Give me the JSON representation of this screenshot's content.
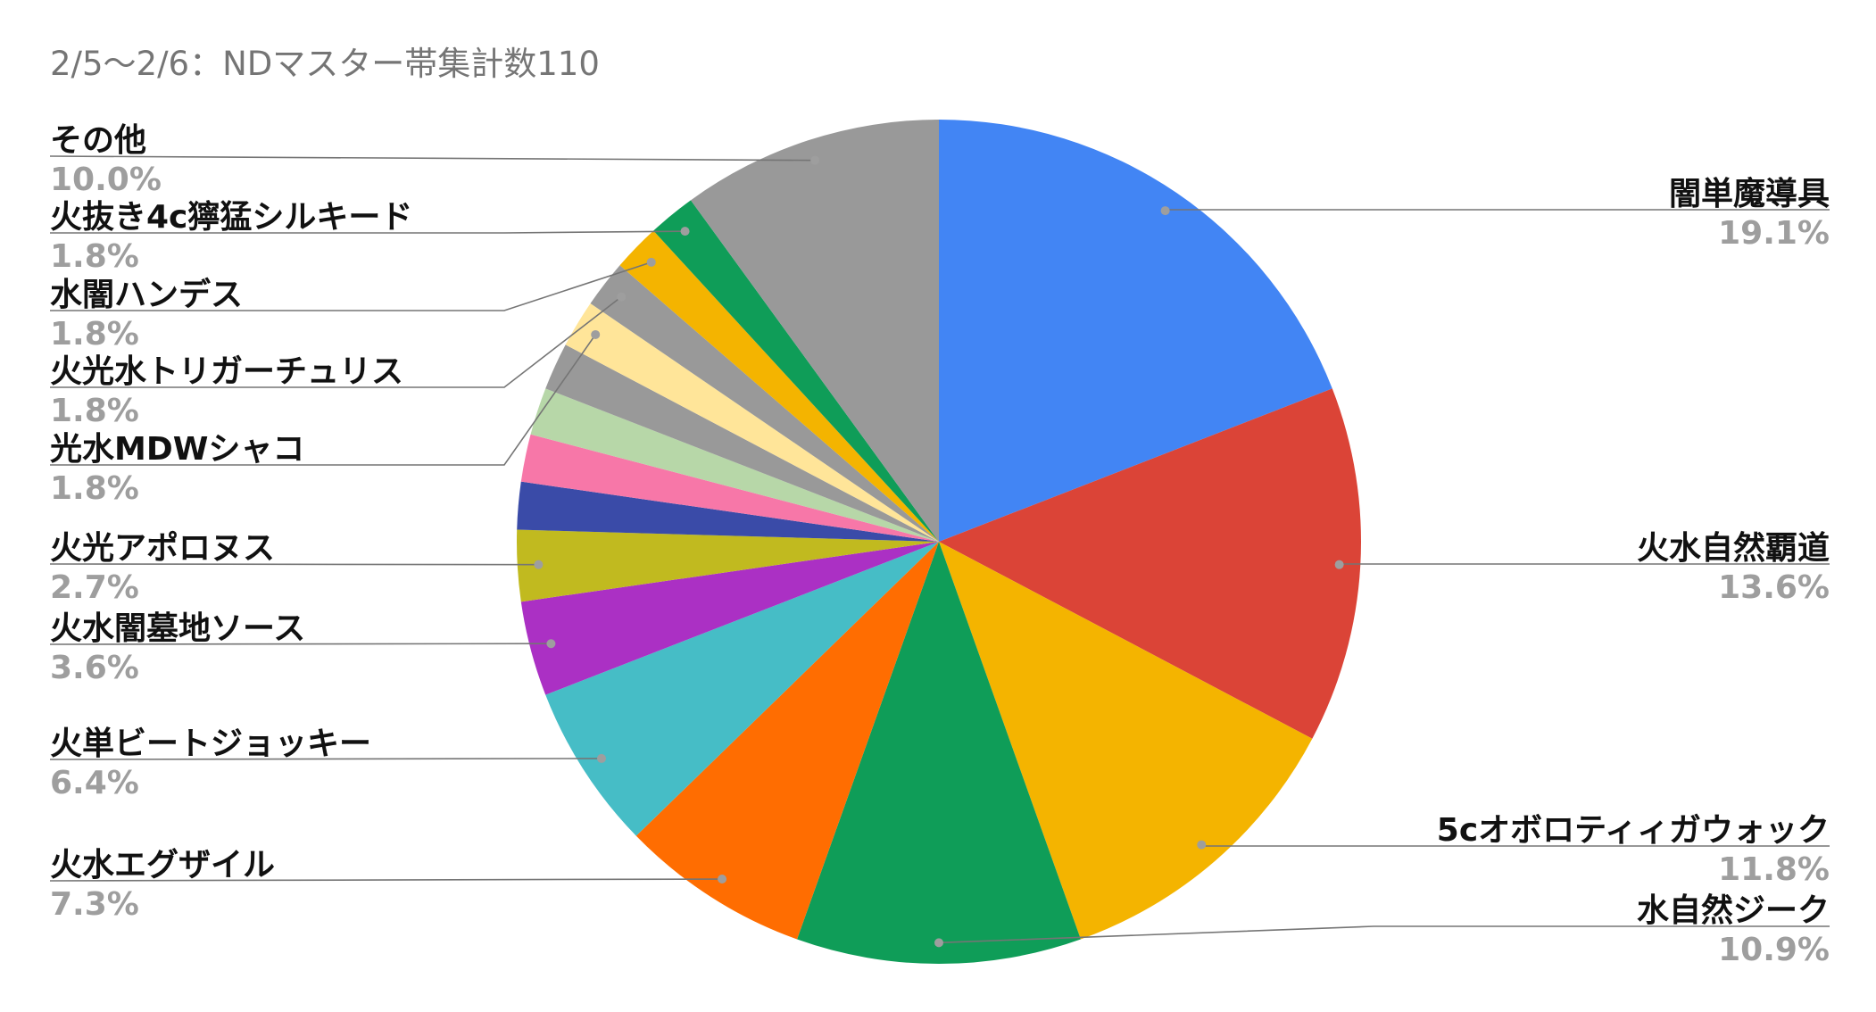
{
  "chart_data": {
    "type": "pie",
    "title": "2/5〜2/6：NDマスター帯集計数110",
    "legend": "labels with leader lines",
    "slices": [
      {
        "label": "闇単魔導具",
        "count": 21,
        "percent": "19.1%",
        "color": "#4285F4",
        "labeled": true
      },
      {
        "label": "火水自然覇道",
        "count": 15,
        "percent": "13.6%",
        "color": "#DB4437",
        "labeled": true
      },
      {
        "label": "5cオボロティィガウォック",
        "count": 13,
        "percent": "11.8%",
        "color": "#F4B400",
        "labeled": true
      },
      {
        "label": "水自然ジーク",
        "count": 12,
        "percent": "10.9%",
        "color": "#0F9D58",
        "labeled": true
      },
      {
        "label": "火水エグザイル",
        "count": 8,
        "percent": "7.3%",
        "color": "#FF6D01",
        "labeled": true
      },
      {
        "label": "火単ビートジョッキー",
        "count": 7,
        "percent": "6.4%",
        "color": "#46BDC6",
        "labeled": true
      },
      {
        "label": "火水闇墓地ソース",
        "count": 4,
        "percent": "3.6%",
        "color": "#AB30C4",
        "labeled": true
      },
      {
        "label": "火光アポロヌス",
        "count": 3,
        "percent": "2.7%",
        "color": "#C1BA1F",
        "labeled": true
      },
      {
        "label": "",
        "count": 2,
        "percent": "1.8%",
        "color": "#3A4BA8",
        "labeled": false
      },
      {
        "label": "",
        "count": 2,
        "percent": "1.8%",
        "color": "#F777A8",
        "labeled": false
      },
      {
        "label": "",
        "count": 2,
        "percent": "1.8%",
        "color": "#B7D7A8",
        "labeled": false
      },
      {
        "label": "",
        "count": 2,
        "percent": "1.8%",
        "color": "#999999",
        "labeled": false
      },
      {
        "label": "光水MDWシャコ",
        "count": 2,
        "percent": "1.8%",
        "color": "#FFE599",
        "labeled": true
      },
      {
        "label": "火光水トリガーチュリス",
        "count": 2,
        "percent": "1.8%",
        "color": "#999999",
        "labeled": true
      },
      {
        "label": "水闇ハンデス",
        "count": 2,
        "percent": "1.8%",
        "color": "#F4B400",
        "labeled": true
      },
      {
        "label": "火抜き4c獰猛シルキード",
        "count": 2,
        "percent": "1.8%",
        "color": "#0F9D58",
        "labeled": true
      },
      {
        "label": "その他",
        "count": 11,
        "percent": "10.0%",
        "color": "#999999",
        "labeled": true
      }
    ]
  }
}
